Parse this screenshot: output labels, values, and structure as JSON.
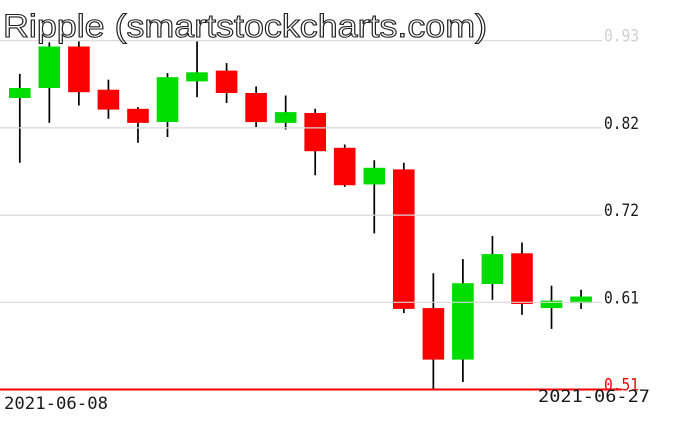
{
  "chart_data": {
    "type": "candlestick",
    "title": "Ripple (smartstockcharts.com)",
    "symbol": "Ripple",
    "source_label": "smartstockcharts.com",
    "ylim": [
      0.51,
      0.93
    ],
    "grid": true,
    "legend": "none",
    "colors": {
      "up": "#00dc00",
      "down": "#fa0000",
      "wick": "#000000",
      "grid": "#d8d8d8",
      "baseline": "#fb0000",
      "title_stroke": "#222222",
      "axis_text": "#1a1a1a",
      "axis_muted": "#d0d0d0"
    },
    "y_axis": [
      {
        "label": "0.93",
        "value": 0.93,
        "text_color": "#d0d0d0",
        "line_color": "#d8d8d8",
        "emphasis": false
      },
      {
        "label": "0.82",
        "value": 0.825,
        "text_color": "#1a1a1a",
        "line_color": "#d8d8d8",
        "emphasis": false
      },
      {
        "label": "0.72",
        "value": 0.72,
        "text_color": "#1a1a1a",
        "line_color": "#d8d8d8",
        "emphasis": false
      },
      {
        "label": "0.61",
        "value": 0.615,
        "text_color": "#1a1a1a",
        "line_color": "#d8d8d8",
        "emphasis": false
      },
      {
        "label": "0.51",
        "value": 0.51,
        "text_color": "#fb0000",
        "line_color": "#fb0000",
        "emphasis": true
      }
    ],
    "x_labels": [
      {
        "label": "2021-06-08",
        "position": "left"
      },
      {
        "label": "2021-06-27",
        "position": "right"
      }
    ],
    "candles": [
      {
        "date": "2021-06-08",
        "open": 0.861,
        "high": 0.89,
        "low": 0.783,
        "close": 0.873
      },
      {
        "date": "2021-06-09",
        "open": 0.873,
        "high": 0.928,
        "low": 0.831,
        "close": 0.923
      },
      {
        "date": "2021-06-10",
        "open": 0.923,
        "high": 0.929,
        "low": 0.852,
        "close": 0.868
      },
      {
        "date": "2021-06-11",
        "open": 0.871,
        "high": 0.883,
        "low": 0.836,
        "close": 0.847
      },
      {
        "date": "2021-06-12",
        "open": 0.848,
        "high": 0.85,
        "low": 0.807,
        "close": 0.831
      },
      {
        "date": "2021-06-13",
        "open": 0.832,
        "high": 0.891,
        "low": 0.814,
        "close": 0.886
      },
      {
        "date": "2021-06-14",
        "open": 0.881,
        "high": 0.929,
        "low": 0.862,
        "close": 0.892
      },
      {
        "date": "2021-06-15",
        "open": 0.894,
        "high": 0.903,
        "low": 0.855,
        "close": 0.867
      },
      {
        "date": "2021-06-16",
        "open": 0.867,
        "high": 0.875,
        "low": 0.826,
        "close": 0.832
      },
      {
        "date": "2021-06-17",
        "open": 0.831,
        "high": 0.864,
        "low": 0.823,
        "close": 0.844
      },
      {
        "date": "2021-06-18",
        "open": 0.843,
        "high": 0.848,
        "low": 0.768,
        "close": 0.797
      },
      {
        "date": "2021-06-19",
        "open": 0.801,
        "high": 0.805,
        "low": 0.754,
        "close": 0.756
      },
      {
        "date": "2021-06-20",
        "open": 0.757,
        "high": 0.786,
        "low": 0.698,
        "close": 0.777
      },
      {
        "date": "2021-06-21",
        "open": 0.775,
        "high": 0.783,
        "low": 0.602,
        "close": 0.607
      },
      {
        "date": "2021-06-22",
        "open": 0.608,
        "high": 0.65,
        "low": 0.511,
        "close": 0.546
      },
      {
        "date": "2021-06-23",
        "open": 0.546,
        "high": 0.667,
        "low": 0.519,
        "close": 0.638
      },
      {
        "date": "2021-06-24",
        "open": 0.637,
        "high": 0.695,
        "low": 0.618,
        "close": 0.673
      },
      {
        "date": "2021-06-25",
        "open": 0.674,
        "high": 0.687,
        "low": 0.6,
        "close": 0.613
      },
      {
        "date": "2021-06-26",
        "open": 0.608,
        "high": 0.635,
        "low": 0.583,
        "close": 0.617
      },
      {
        "date": "2021-06-27",
        "open": 0.614,
        "high": 0.63,
        "low": 0.607,
        "close": 0.622
      }
    ]
  }
}
